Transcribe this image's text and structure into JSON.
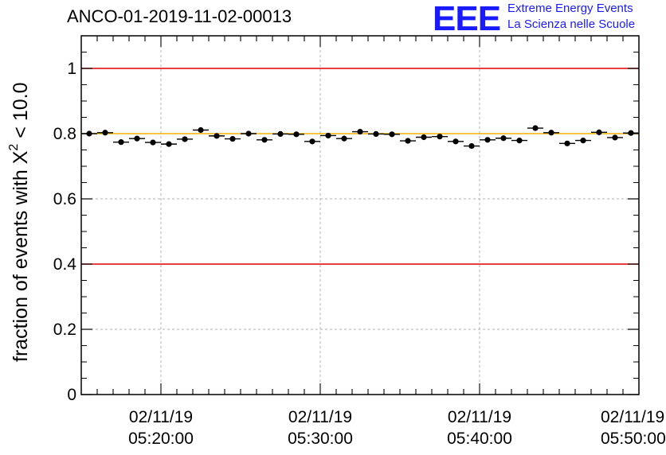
{
  "chart_data": {
    "type": "scatter",
    "title": "ANCO-01-2019-11-02-00013",
    "ylabel_prefix": "fraction of events with ",
    "ylabel_symbol": "X",
    "ylabel_superscript": "2",
    "ylabel_suffix": " < 10.0",
    "ylim": [
      0,
      1.1
    ],
    "yticks": [
      0,
      0.2,
      0.4,
      0.6,
      0.8,
      1
    ],
    "ytick_labels": [
      "0",
      "0.2",
      "0.4",
      "0.6",
      "0.8",
      "1"
    ],
    "xlim_minutes": [
      0,
      35
    ],
    "xticks_minutes": [
      5,
      15,
      25,
      35
    ],
    "xtick_labels": [
      [
        "02/11/19",
        "05:20:00"
      ],
      [
        "02/11/19",
        "05:30:00"
      ],
      [
        "02/11/19",
        "05:40:00"
      ],
      [
        "02/11/19",
        "05:50:00"
      ]
    ],
    "grid": true,
    "reference_lines": [
      {
        "y": 1.0,
        "color": "#e00000"
      },
      {
        "y": 0.4,
        "color": "#e00000"
      },
      {
        "y": 0.8,
        "color": "#f0b400"
      }
    ],
    "bin_width_minutes": 1,
    "x_minutes": [
      0.5,
      1.5,
      2.5,
      3.5,
      4.5,
      5.5,
      6.5,
      7.5,
      8.5,
      9.5,
      10.5,
      11.5,
      12.5,
      13.5,
      14.5,
      15.5,
      16.5,
      17.5,
      18.5,
      19.5,
      20.5,
      21.5,
      22.5,
      23.5,
      24.5,
      25.5,
      26.5,
      27.5,
      28.5,
      29.5,
      30.5,
      31.5,
      32.5,
      33.5,
      34.5
    ],
    "values": [
      0.8,
      0.803,
      0.774,
      0.785,
      0.773,
      0.768,
      0.783,
      0.811,
      0.793,
      0.784,
      0.8,
      0.781,
      0.799,
      0.798,
      0.776,
      0.794,
      0.785,
      0.806,
      0.799,
      0.798,
      0.778,
      0.789,
      0.791,
      0.776,
      0.762,
      0.781,
      0.786,
      0.779,
      0.817,
      0.803,
      0.77,
      0.779,
      0.804,
      0.788,
      0.802
    ],
    "errors": [
      0.007,
      0.007,
      0.007,
      0.007,
      0.007,
      0.007,
      0.007,
      0.007,
      0.007,
      0.007,
      0.007,
      0.007,
      0.007,
      0.007,
      0.007,
      0.007,
      0.007,
      0.007,
      0.007,
      0.007,
      0.007,
      0.007,
      0.007,
      0.007,
      0.007,
      0.007,
      0.007,
      0.007,
      0.007,
      0.007,
      0.007,
      0.007,
      0.007,
      0.007,
      0.007
    ]
  },
  "logo": {
    "mark": "EEE",
    "line1": "Extreme Energy Events",
    "line2": "La Scienza nelle Scuole",
    "color": "#1a1aff"
  }
}
